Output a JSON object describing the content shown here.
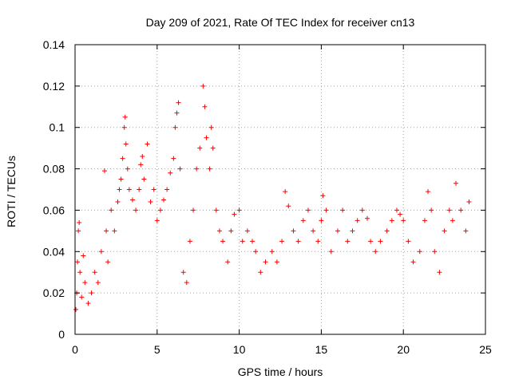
{
  "chart_data": {
    "type": "scatter",
    "title": "Day 209 of 2021, Rate Of TEC Index for receiver cn13",
    "xlabel": "GPS time / hours",
    "ylabel": "ROTI / TECUs",
    "xlim": [
      0,
      25
    ],
    "ylim": [
      0,
      0.14
    ],
    "x_ticks": [
      "0",
      "5",
      "10",
      "15",
      "20",
      "25"
    ],
    "y_ticks": [
      "0",
      "0.02",
      "0.04",
      "0.06",
      "0.08",
      "0.1",
      "0.12",
      "0.14"
    ],
    "grid": true,
    "marker": "+",
    "color": "#ff0000",
    "series": [
      {
        "points": [
          [
            0.05,
            0.012
          ],
          [
            0.1,
            0.02
          ],
          [
            0.15,
            0.035
          ],
          [
            0.2,
            0.05
          ],
          [
            0.25,
            0.054
          ],
          [
            0.3,
            0.03
          ],
          [
            0.4,
            0.018
          ],
          [
            0.5,
            0.038
          ],
          [
            0.6,
            0.025
          ],
          [
            0.8,
            0.015
          ],
          [
            1.0,
            0.02
          ],
          [
            1.2,
            0.03
          ],
          [
            1.4,
            0.025
          ],
          [
            1.6,
            0.04
          ],
          [
            1.8,
            0.079
          ],
          [
            1.9,
            0.05
          ],
          [
            2.0,
            0.035
          ],
          [
            2.2,
            0.06
          ],
          [
            2.4,
            0.05
          ],
          [
            2.6,
            0.064
          ],
          [
            2.7,
            0.07
          ],
          [
            2.8,
            0.075
          ],
          [
            2.9,
            0.085
          ],
          [
            3.0,
            0.1
          ],
          [
            3.05,
            0.105
          ],
          [
            3.1,
            0.092
          ],
          [
            3.2,
            0.08
          ],
          [
            3.3,
            0.07
          ],
          [
            3.5,
            0.065
          ],
          [
            3.7,
            0.06
          ],
          [
            3.9,
            0.07
          ],
          [
            4.0,
            0.082
          ],
          [
            4.1,
            0.086
          ],
          [
            4.2,
            0.075
          ],
          [
            4.4,
            0.092
          ],
          [
            4.6,
            0.064
          ],
          [
            4.8,
            0.07
          ],
          [
            5.0,
            0.055
          ],
          [
            5.2,
            0.06
          ],
          [
            5.4,
            0.065
          ],
          [
            5.6,
            0.07
          ],
          [
            5.8,
            0.078
          ],
          [
            6.0,
            0.085
          ],
          [
            6.1,
            0.1
          ],
          [
            6.2,
            0.107
          ],
          [
            6.3,
            0.112
          ],
          [
            6.4,
            0.08
          ],
          [
            6.6,
            0.03
          ],
          [
            6.8,
            0.025
          ],
          [
            7.0,
            0.045
          ],
          [
            7.2,
            0.06
          ],
          [
            7.4,
            0.08
          ],
          [
            7.6,
            0.09
          ],
          [
            7.8,
            0.12
          ],
          [
            7.9,
            0.11
          ],
          [
            8.0,
            0.095
          ],
          [
            8.2,
            0.08
          ],
          [
            8.3,
            0.1
          ],
          [
            8.4,
            0.09
          ],
          [
            8.6,
            0.06
          ],
          [
            8.8,
            0.05
          ],
          [
            9.0,
            0.045
          ],
          [
            9.3,
            0.035
          ],
          [
            9.5,
            0.05
          ],
          [
            9.7,
            0.058
          ],
          [
            10.0,
            0.06
          ],
          [
            10.2,
            0.045
          ],
          [
            10.5,
            0.05
          ],
          [
            10.8,
            0.045
          ],
          [
            11.0,
            0.04
          ],
          [
            11.3,
            0.03
          ],
          [
            11.6,
            0.035
          ],
          [
            12.0,
            0.04
          ],
          [
            12.3,
            0.035
          ],
          [
            12.6,
            0.045
          ],
          [
            12.8,
            0.069
          ],
          [
            13.0,
            0.062
          ],
          [
            13.3,
            0.05
          ],
          [
            13.6,
            0.045
          ],
          [
            13.9,
            0.055
          ],
          [
            14.2,
            0.06
          ],
          [
            14.5,
            0.05
          ],
          [
            14.8,
            0.045
          ],
          [
            15.0,
            0.055
          ],
          [
            15.1,
            0.067
          ],
          [
            15.3,
            0.06
          ],
          [
            15.6,
            0.04
          ],
          [
            16.0,
            0.05
          ],
          [
            16.3,
            0.06
          ],
          [
            16.6,
            0.045
          ],
          [
            16.9,
            0.05
          ],
          [
            17.2,
            0.055
          ],
          [
            17.5,
            0.06
          ],
          [
            17.8,
            0.056
          ],
          [
            18.0,
            0.045
          ],
          [
            18.3,
            0.04
          ],
          [
            18.6,
            0.045
          ],
          [
            19.0,
            0.05
          ],
          [
            19.3,
            0.055
          ],
          [
            19.6,
            0.06
          ],
          [
            19.8,
            0.058
          ],
          [
            20.0,
            0.055
          ],
          [
            20.3,
            0.045
          ],
          [
            20.6,
            0.035
          ],
          [
            21.0,
            0.04
          ],
          [
            21.3,
            0.055
          ],
          [
            21.5,
            0.069
          ],
          [
            21.7,
            0.06
          ],
          [
            21.9,
            0.04
          ],
          [
            22.2,
            0.03
          ],
          [
            22.5,
            0.05
          ],
          [
            22.8,
            0.06
          ],
          [
            23.0,
            0.055
          ],
          [
            23.2,
            0.073
          ],
          [
            23.5,
            0.06
          ],
          [
            23.8,
            0.05
          ],
          [
            24.0,
            0.064
          ]
        ]
      }
    ]
  }
}
